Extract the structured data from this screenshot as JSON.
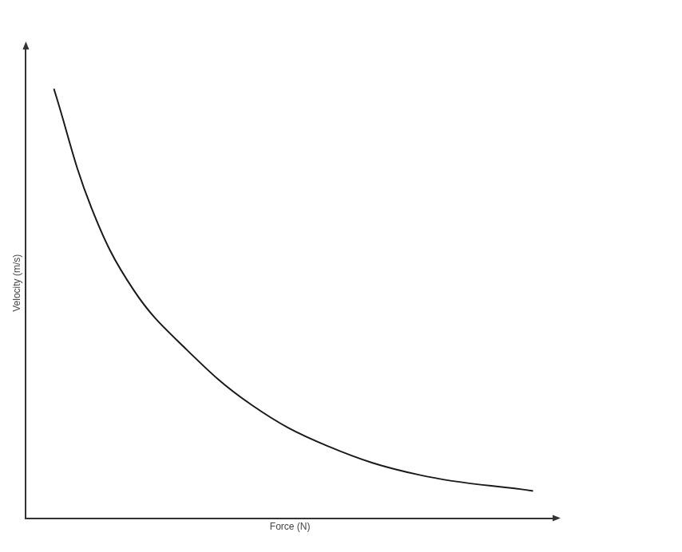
{
  "chart_data": {
    "type": "line",
    "x_label": "Force (N)",
    "y_label": "Velocity (m/s)",
    "x": [
      5.3,
      12.4,
      20.4,
      30,
      42.7,
      57,
      74.5,
      96
    ],
    "values": [
      91.3,
      66,
      48.5,
      36.3,
      24.1,
      15.4,
      9.2,
      5.8
    ],
    "color": "#1a1a1a",
    "xlim": [
      0,
      100
    ],
    "ylim": [
      0,
      100
    ],
    "tick_labels": false,
    "grid": false
  }
}
